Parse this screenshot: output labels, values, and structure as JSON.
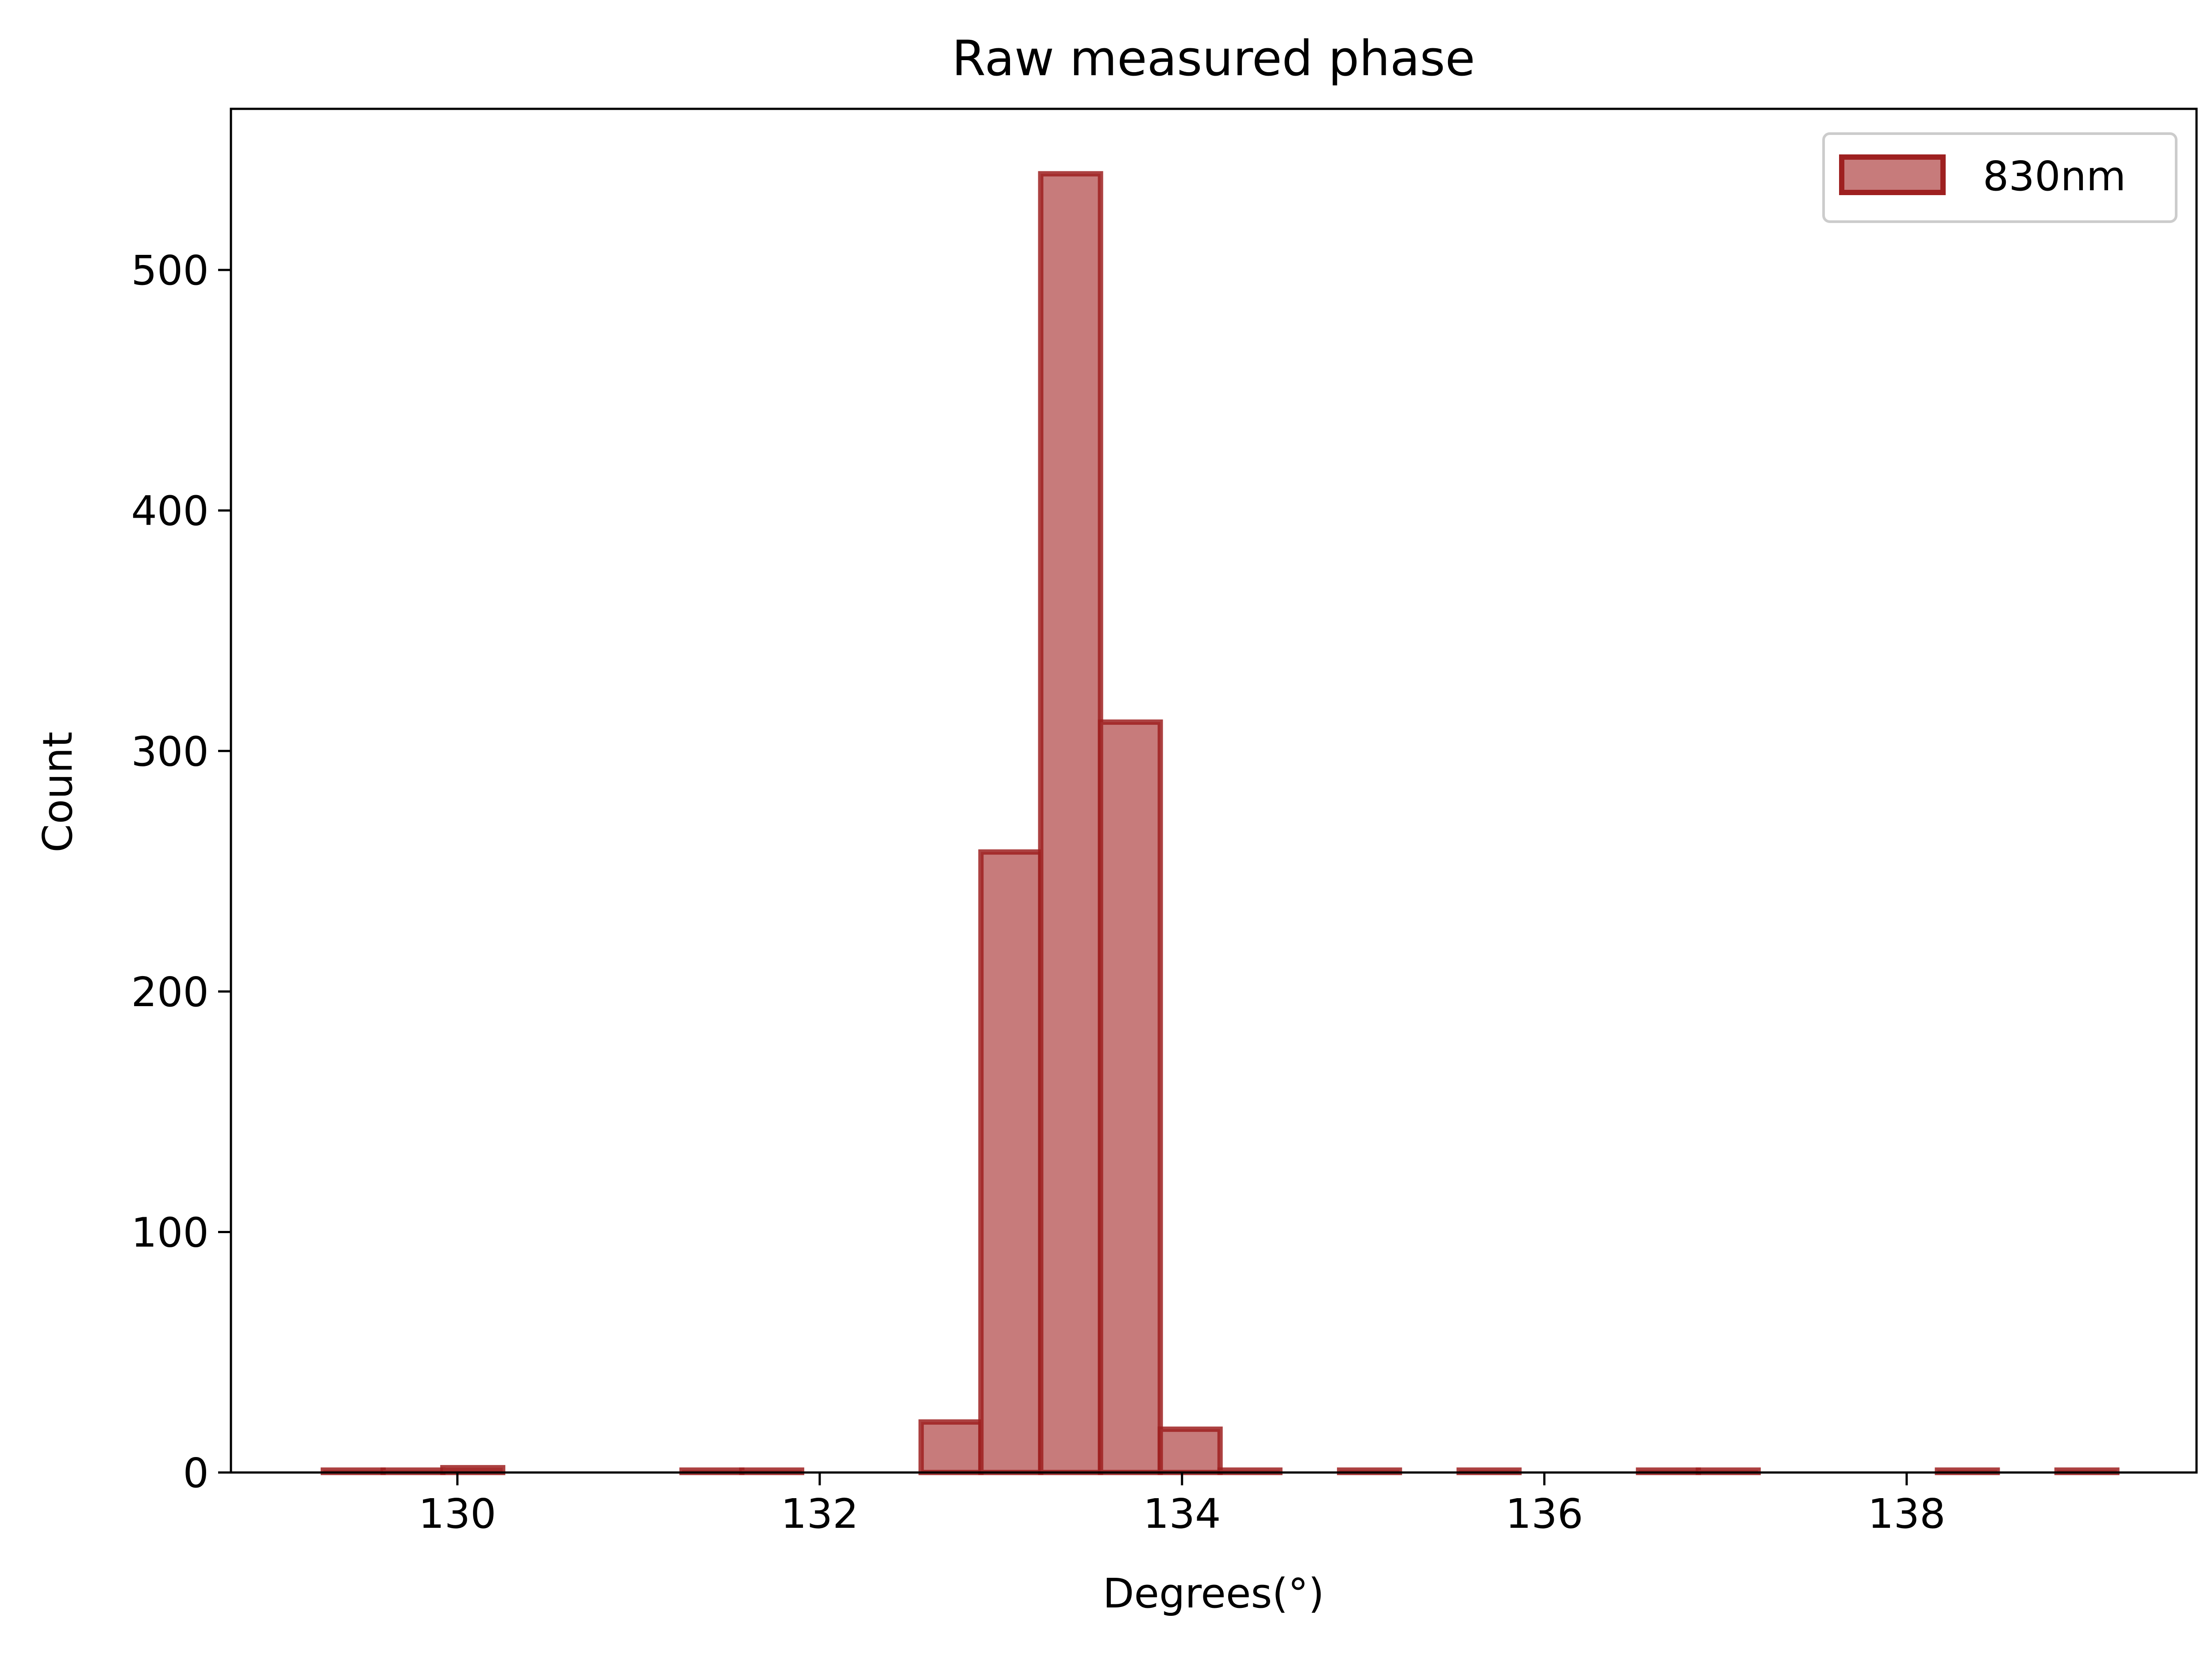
{
  "chart_data": {
    "type": "bar",
    "title": "Raw measured phase",
    "xlabel": "Degrees(°)",
    "ylabel": "Count",
    "xlim": [
      128.75,
      139.6
    ],
    "ylim": [
      0,
      567
    ],
    "xticks": [
      130,
      132,
      134,
      136,
      138
    ],
    "yticks": [
      0,
      100,
      200,
      300,
      400,
      500
    ],
    "grid": false,
    "legend_position": "top-right",
    "colors": {
      "fill": "#c77b7b",
      "edge": "#9e2020"
    },
    "series": [
      {
        "name": "830nm",
        "bins": [
          {
            "x0": 129.26,
            "x1": 129.59,
            "count": 1
          },
          {
            "x0": 129.59,
            "x1": 129.92,
            "count": 1
          },
          {
            "x0": 129.92,
            "x1": 130.25,
            "count": 2
          },
          {
            "x0": 130.25,
            "x1": 130.58,
            "count": 0
          },
          {
            "x0": 130.58,
            "x1": 130.91,
            "count": 0
          },
          {
            "x0": 130.91,
            "x1": 131.24,
            "count": 0
          },
          {
            "x0": 131.24,
            "x1": 131.57,
            "count": 1
          },
          {
            "x0": 131.57,
            "x1": 131.9,
            "count": 1
          },
          {
            "x0": 131.9,
            "x1": 132.23,
            "count": 0
          },
          {
            "x0": 132.23,
            "x1": 132.56,
            "count": 0
          },
          {
            "x0": 132.56,
            "x1": 132.89,
            "count": 21
          },
          {
            "x0": 132.89,
            "x1": 133.22,
            "count": 258
          },
          {
            "x0": 133.22,
            "x1": 133.55,
            "count": 540
          },
          {
            "x0": 133.55,
            "x1": 133.88,
            "count": 312
          },
          {
            "x0": 133.88,
            "x1": 134.21,
            "count": 18
          },
          {
            "x0": 134.21,
            "x1": 134.54,
            "count": 1
          },
          {
            "x0": 134.54,
            "x1": 134.87,
            "count": 0
          },
          {
            "x0": 134.87,
            "x1": 135.2,
            "count": 1
          },
          {
            "x0": 135.2,
            "x1": 135.53,
            "count": 0
          },
          {
            "x0": 135.53,
            "x1": 135.86,
            "count": 1
          },
          {
            "x0": 135.86,
            "x1": 136.19,
            "count": 0
          },
          {
            "x0": 136.19,
            "x1": 136.52,
            "count": 0
          },
          {
            "x0": 136.52,
            "x1": 136.85,
            "count": 1
          },
          {
            "x0": 136.85,
            "x1": 137.18,
            "count": 1
          },
          {
            "x0": 137.18,
            "x1": 137.51,
            "count": 0
          },
          {
            "x0": 137.51,
            "x1": 137.84,
            "count": 0
          },
          {
            "x0": 137.84,
            "x1": 138.17,
            "count": 0
          },
          {
            "x0": 138.17,
            "x1": 138.5,
            "count": 1
          },
          {
            "x0": 138.5,
            "x1": 138.83,
            "count": 0
          },
          {
            "x0": 138.83,
            "x1": 139.16,
            "count": 1
          }
        ]
      }
    ]
  }
}
